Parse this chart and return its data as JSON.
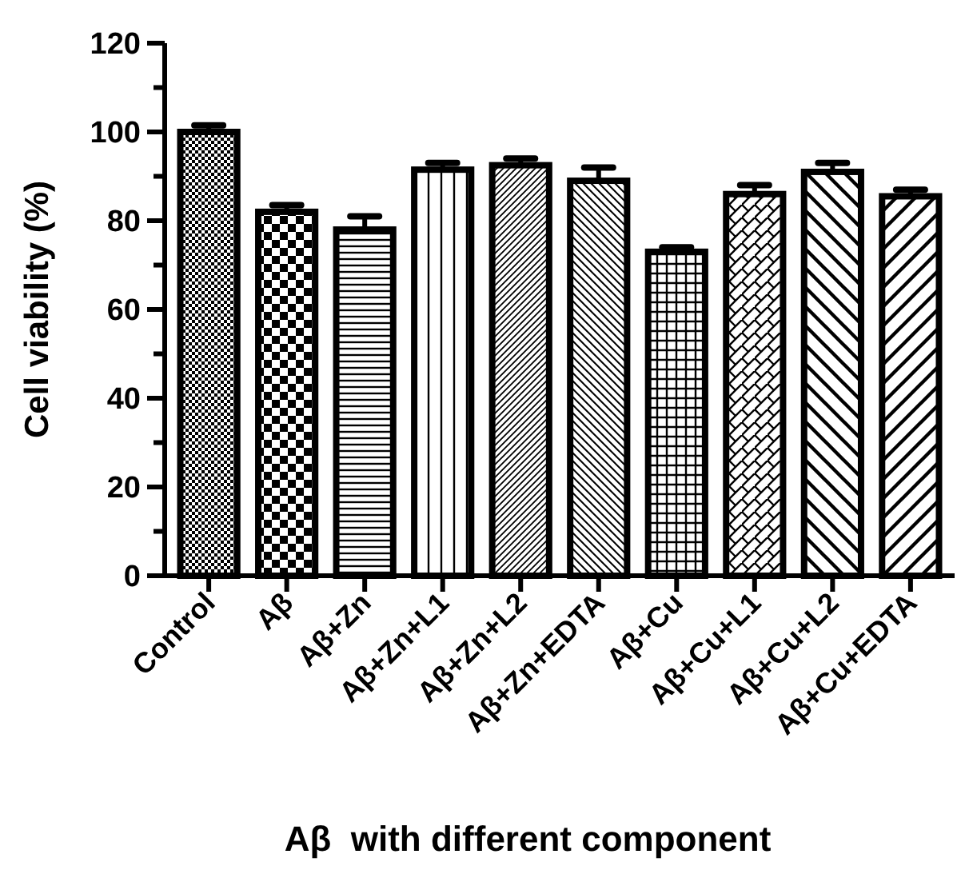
{
  "chart_data": {
    "type": "bar",
    "xlabel": "Aβ  with different component",
    "ylabel": "Cell viability (%)",
    "categories": [
      "Control",
      "Aβ",
      "Aβ+Zn",
      "Aβ+Zn+L1",
      "Aβ+Zn+L2",
      "Aβ+Zn+EDTA",
      "Aβ+Cu",
      "Aβ+Cu+L1",
      "Aβ+Cu+L2",
      "Aβ+Cu+EDTA"
    ],
    "values": [
      100,
      82,
      78,
      91.5,
      92.5,
      89,
      73,
      86,
      91,
      85.5
    ],
    "errors": [
      1.5,
      1.5,
      3,
      1.5,
      1.5,
      3,
      1,
      2,
      2,
      1.5
    ],
    "color": "#000000",
    "ylim": [
      0,
      120
    ],
    "yticks": [
      0,
      {
        "value": 10,
        "label": null
      },
      20,
      {
        "value": 30,
        "label": null
      },
      40,
      {
        "value": 50,
        "label": null
      },
      60,
      {
        "value": 70,
        "label": null
      },
      80,
      {
        "value": 90,
        "label": null
      },
      100,
      {
        "value": 110,
        "label": null
      },
      120
    ],
    "grid": false
  }
}
